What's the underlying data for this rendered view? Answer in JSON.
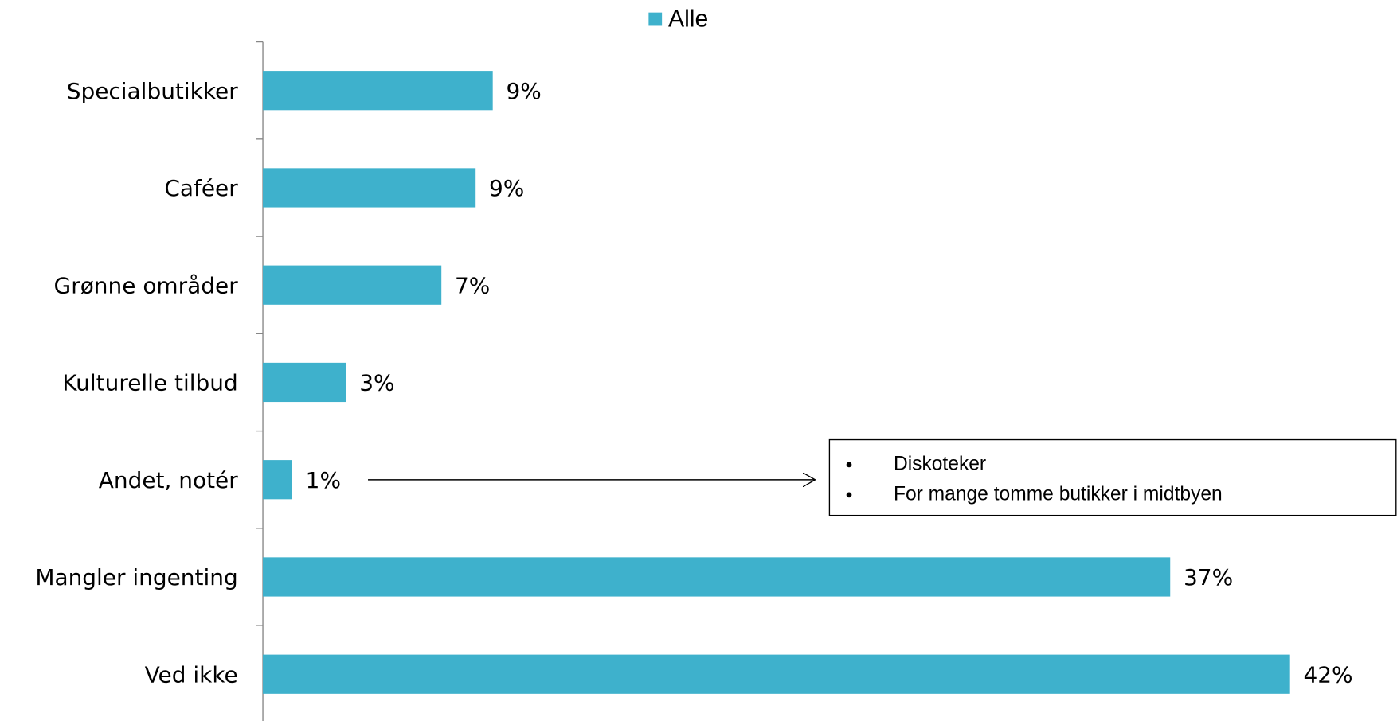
{
  "chart_data": {
    "type": "barh",
    "categories": [
      "Specialbutikker",
      "Caféer",
      "Grønne områder",
      "Kulturelle tilbud",
      "Andet, notér",
      "Mangler ingenting",
      "Ved ikke"
    ],
    "series": [
      {
        "name": "Alle",
        "color": "#3eb1cc",
        "values": [
          9.4,
          8.7,
          7.3,
          3.4,
          1.2,
          37.1,
          42
        ],
        "value_labels": [
          "9%",
          "9%",
          "7%",
          "3%",
          "1%",
          "37%",
          "42%"
        ]
      }
    ],
    "xlim": [
      0,
      42
    ],
    "legend": "top",
    "annotation": {
      "items": [
        "Diskoteker",
        "For mange tomme butikker i midtbyen"
      ]
    }
  }
}
